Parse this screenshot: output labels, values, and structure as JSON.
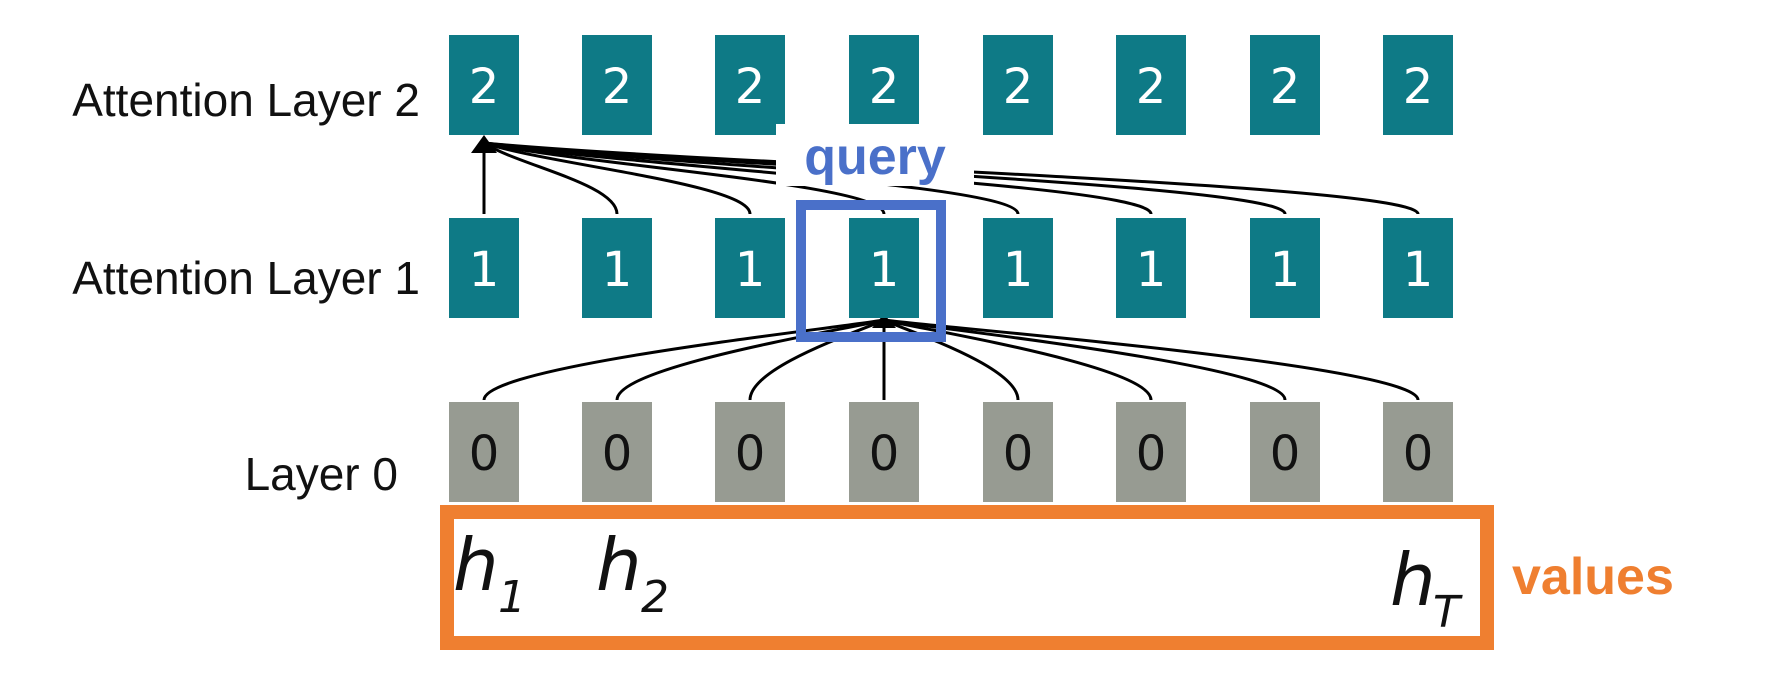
{
  "rows": [
    {
      "label": "Attention Layer 2",
      "cell_text": "2",
      "cell_count": 8,
      "fill": "#0e7a86",
      "text_color": "#ffffff"
    },
    {
      "label": "Attention Layer 1",
      "cell_text": "1",
      "cell_count": 8,
      "fill": "#0e7a86",
      "text_color": "#ffffff"
    },
    {
      "label": "Layer 0",
      "cell_text": "0",
      "cell_count": 8,
      "fill": "#979b92",
      "text_color": "#111111"
    }
  ],
  "query": {
    "label": "query",
    "color": "#4a70c9",
    "highlighted_cell": 4
  },
  "values": {
    "label": "values",
    "color": "#ef7f30",
    "hidden_states": [
      {
        "base": "h",
        "sub": "1"
      },
      {
        "base": "h",
        "sub": "2"
      },
      {
        "base": "h",
        "sub": "T"
      }
    ]
  },
  "connections": [
    {
      "from_row": "Layer 0",
      "to_row": "Attention Layer 1",
      "to_cell": 4,
      "from_cells": "all"
    },
    {
      "from_row": "Attention Layer 1",
      "to_row": "Attention Layer 2",
      "to_cell": 1,
      "from_cells": "all"
    }
  ],
  "line_color": "#000000"
}
